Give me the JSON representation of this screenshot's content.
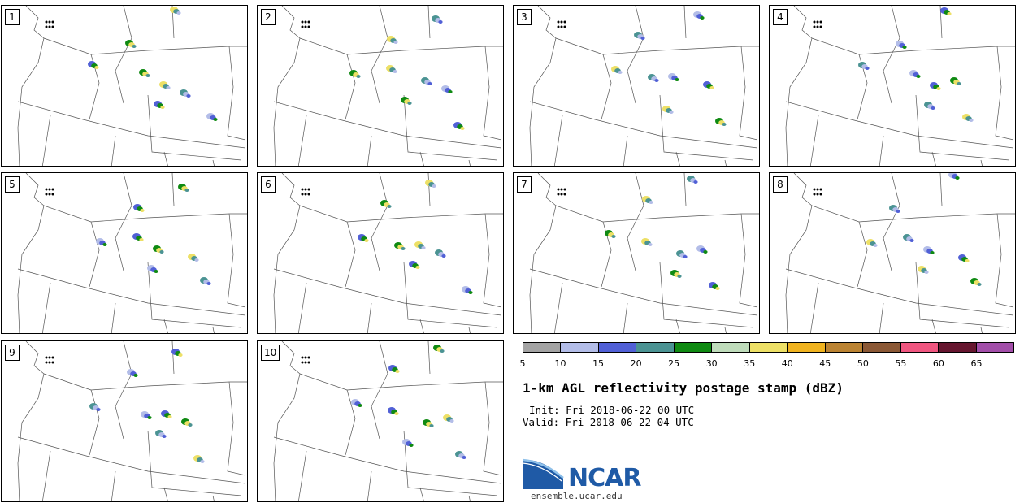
{
  "panels": [
    "1",
    "2",
    "3",
    "4",
    "5",
    "6",
    "7",
    "8",
    "9",
    "10"
  ],
  "colorbar": {
    "ticks": [
      "5",
      "10",
      "15",
      "20",
      "25",
      "30",
      "35",
      "40",
      "45",
      "50",
      "55",
      "60",
      "65"
    ],
    "colors": [
      "#a3a3a3",
      "#b3bde8",
      "#5160d6",
      "#4b9393",
      "#0f8a12",
      "#bfdcbb",
      "#ede066",
      "#f0b31f",
      "#bb8332",
      "#8b5835",
      "#f05680",
      "#66162f",
      "#a24ea9"
    ]
  },
  "title": "1-km AGL reflectivity postage stamp (dBZ)",
  "init": "Init: Fri 2018-06-22 00 UTC",
  "valid": "Valid: Fri 2018-06-22 04 UTC",
  "logo": "NCAR",
  "url": "ensemble.ucar.edu"
}
